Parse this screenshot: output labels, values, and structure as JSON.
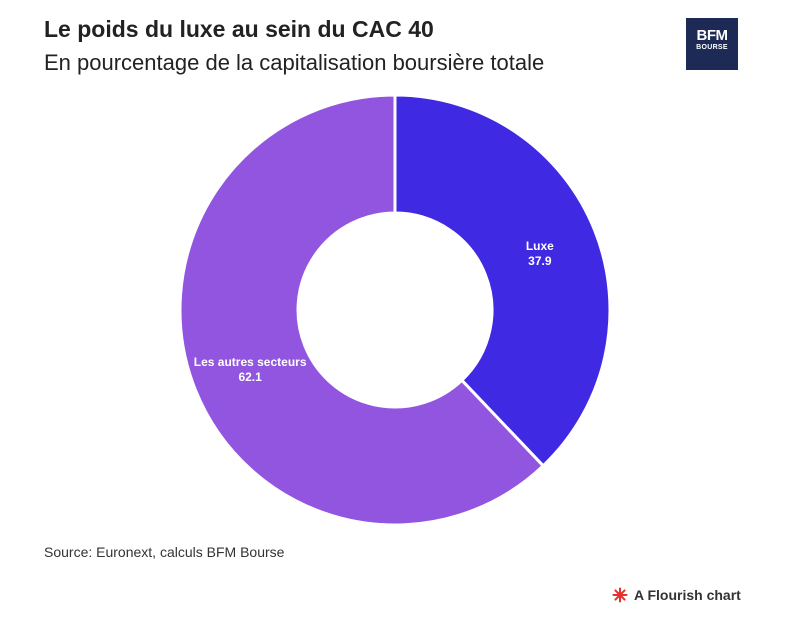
{
  "header": {
    "title": "Le poids du luxe au sein du CAC 40",
    "subtitle": "En pourcentage de la capitalisation boursière totale"
  },
  "logo": {
    "line1": "BFM",
    "line2": "BOURSE",
    "background_color": "#1c2a55"
  },
  "chart_data": {
    "type": "pie",
    "variant": "donut",
    "title": "Le poids du luxe au sein du CAC 40",
    "subtitle": "En pourcentage de la capitalisation boursière totale",
    "categories": [
      "Luxe",
      "Les autres secteurs"
    ],
    "values": [
      37.9,
      62.1
    ],
    "colors": [
      "#4029e3",
      "#9155e0"
    ],
    "start": "top",
    "direction": "clockwise",
    "legend": "none"
  },
  "footer": {
    "source": "Source: Euronext, calculs BFM Bourse",
    "credit": "A Flourish chart",
    "credit_icon": "flourish-star-icon",
    "credit_icon_color": "#e5322d"
  }
}
